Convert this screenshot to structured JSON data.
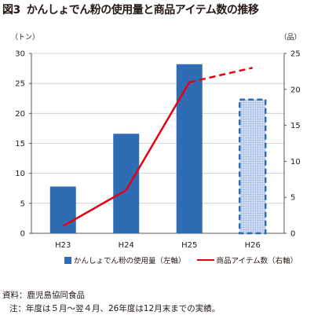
{
  "figure": {
    "number": "図3",
    "title": "かんしょでん粉の使用量と商品アイテム数の推移"
  },
  "legend": {
    "bar_label": "かんしょでん粉の使用量（左軸）",
    "line_label": "商品アイテム数（右軸）"
  },
  "notes": {
    "source": "資料：鹿児島協同食品",
    "comment": "注：年度は５月～翌４月、26年度は12月末までの実績。"
  },
  "colors": {
    "bar": "#2e6db4",
    "bar_estimate_fill": "#c7d7ef",
    "bar_estimate_border": "#2e6db4",
    "line": "#e60012",
    "axis": "#595757",
    "grid": "#c9c9c9"
  },
  "chart_data": {
    "type": "bar",
    "categories": [
      "H23",
      "H24",
      "H25",
      "H26"
    ],
    "left_axis": {
      "unit_label": "（トン）",
      "ylim": [
        0,
        30
      ],
      "ticks": [
        "0",
        "5",
        "10",
        "15",
        "20",
        "25",
        "30"
      ]
    },
    "right_axis": {
      "unit_label": "（品）",
      "ylim": [
        0,
        25
      ],
      "ticks": [
        "0",
        "5",
        "10",
        "15",
        "20",
        "25"
      ]
    },
    "series": [
      {
        "name": "かんしょでん粉の使用量（左軸）",
        "type": "bar",
        "axis": "left",
        "values": [
          7.8,
          16.6,
          28.2,
          22.3
        ],
        "estimated": [
          false,
          false,
          false,
          true
        ]
      },
      {
        "name": "商品アイテム数（右軸）",
        "type": "line",
        "axis": "right",
        "values": [
          1,
          6,
          21,
          23
        ],
        "estimated": [
          false,
          false,
          false,
          true
        ]
      }
    ],
    "grid": true,
    "legend_position": "bottom"
  }
}
